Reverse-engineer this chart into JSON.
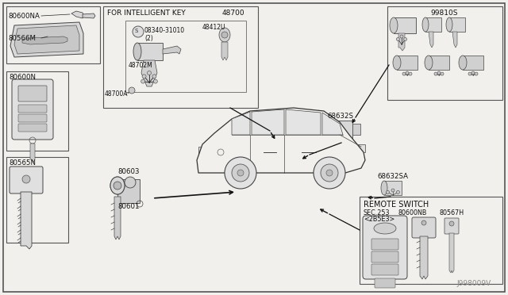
{
  "bg_color": "#f2f0ec",
  "line_color": "#2a2a2a",
  "border_color": "#444444",
  "watermark": "J998009V",
  "labels": {
    "tl_label1": "80600NA",
    "tl_label2": "80566M",
    "ml_label": "80600N",
    "bl_label": "80565N",
    "ik_title": "FOR INTELLIGENT KEY",
    "ik_num": "48700",
    "ik_sub1": "08340-31010",
    "ik_sub1b": "(2)",
    "ik_sub2": "48412U",
    "ik_sub3": "48702M",
    "ik_sub4": "48700A",
    "tr_label": "99810S",
    "mr1_label": "68632S",
    "mr2_label": "68632SA",
    "bl1_label": "80603",
    "bl2_label": "80601",
    "remote_title": "REMOTE SWITCH",
    "remote_sub1": "SEC.253",
    "remote_sub2": "<2B5E3>",
    "remote_sub3": "80600NB",
    "remote_sub4": "80567H"
  },
  "boxes": {
    "outer": [
      4,
      4,
      632,
      364
    ],
    "tl": [
      8,
      8,
      118,
      72
    ],
    "ml": [
      8,
      90,
      78,
      100
    ],
    "bl": [
      8,
      198,
      78,
      108
    ],
    "ik": [
      130,
      8,
      195,
      128
    ],
    "tr": [
      488,
      8,
      145,
      118
    ],
    "remote": [
      453,
      248,
      180,
      110
    ]
  }
}
